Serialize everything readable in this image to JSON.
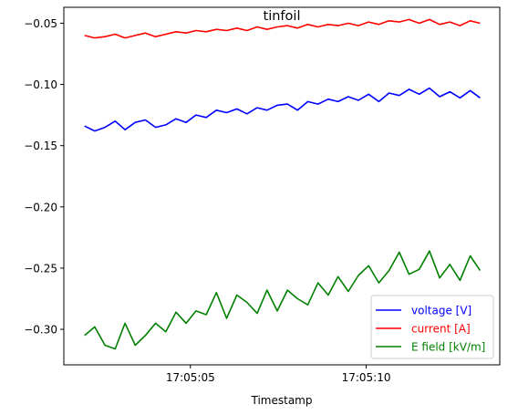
{
  "chart_data": {
    "type": "line",
    "title": "tinfoil",
    "xlabel": "Timestamp",
    "ylabel": "",
    "x_unit": "seconds (time of day)",
    "x_ticks": [
      {
        "value": "17:05:05",
        "label": "17:05:05"
      },
      {
        "value": "17:05:10",
        "label": "17:05:10"
      }
    ],
    "xlim": [
      "17:05:01.40",
      "17:05:13.80"
    ],
    "ylim": [
      -0.329,
      -0.037
    ],
    "y_ticks": [
      -0.05,
      -0.1,
      -0.15,
      -0.2,
      -0.25,
      -0.3
    ],
    "y_tick_labels": [
      "−0.05",
      "−0.10",
      "−0.15",
      "−0.20",
      "−0.25",
      "−0.30"
    ],
    "grid": false,
    "legend_position": "bottom-right",
    "x": [
      "17:05:01.99",
      "17:05:02.28",
      "17:05:02.57",
      "17:05:02.86",
      "17:05:03.14",
      "17:05:03.43",
      "17:05:03.72",
      "17:05:04.01",
      "17:05:04.30",
      "17:05:04.59",
      "17:05:04.88",
      "17:05:05.16",
      "17:05:05.45",
      "17:05:05.74",
      "17:05:06.03",
      "17:05:06.32",
      "17:05:06.61",
      "17:05:06.90",
      "17:05:07.18",
      "17:05:07.47",
      "17:05:07.76",
      "17:05:08.05",
      "17:05:08.34",
      "17:05:08.63",
      "17:05:08.92",
      "17:05:09.20",
      "17:05:09.49",
      "17:05:09.78",
      "17:05:10.07",
      "17:05:10.36",
      "17:05:10.65",
      "17:05:10.94",
      "17:05:11.22",
      "17:05:11.51",
      "17:05:11.80",
      "17:05:12.09",
      "17:05:12.38",
      "17:05:12.67",
      "17:05:12.96",
      "17:05:13.24"
    ],
    "series": [
      {
        "name": "voltage [V]",
        "color": "#0000ff",
        "values": [
          -0.134,
          -0.138,
          -0.135,
          -0.13,
          -0.137,
          -0.131,
          -0.129,
          -0.135,
          -0.133,
          -0.128,
          -0.131,
          -0.125,
          -0.127,
          -0.121,
          -0.123,
          -0.12,
          -0.124,
          -0.119,
          -0.121,
          -0.117,
          -0.116,
          -0.121,
          -0.114,
          -0.116,
          -0.112,
          -0.114,
          -0.11,
          -0.113,
          -0.108,
          -0.114,
          -0.107,
          -0.109,
          -0.104,
          -0.108,
          -0.103,
          -0.11,
          -0.106,
          -0.111,
          -0.105,
          -0.111
        ]
      },
      {
        "name": "current [A]",
        "color": "#ff0000",
        "values": [
          -0.06,
          -0.062,
          -0.061,
          -0.059,
          -0.062,
          -0.06,
          -0.058,
          -0.061,
          -0.059,
          -0.057,
          -0.058,
          -0.056,
          -0.057,
          -0.055,
          -0.056,
          -0.054,
          -0.056,
          -0.053,
          -0.055,
          -0.053,
          -0.052,
          -0.054,
          -0.051,
          -0.053,
          -0.051,
          -0.052,
          -0.05,
          -0.052,
          -0.049,
          -0.051,
          -0.048,
          -0.049,
          -0.047,
          -0.05,
          -0.047,
          -0.051,
          -0.049,
          -0.052,
          -0.048,
          -0.05
        ]
      },
      {
        "name": "E field [kV/m]",
        "color": "#008000",
        "values": [
          -0.305,
          -0.298,
          -0.313,
          -0.316,
          -0.295,
          -0.313,
          -0.305,
          -0.295,
          -0.302,
          -0.286,
          -0.295,
          -0.285,
          -0.288,
          -0.27,
          -0.291,
          -0.272,
          -0.278,
          -0.287,
          -0.268,
          -0.285,
          -0.268,
          -0.275,
          -0.28,
          -0.262,
          -0.272,
          -0.257,
          -0.269,
          -0.256,
          -0.248,
          -0.262,
          -0.252,
          -0.237,
          -0.255,
          -0.251,
          -0.236,
          -0.258,
          -0.247,
          -0.26,
          -0.24,
          -0.252
        ]
      }
    ]
  }
}
